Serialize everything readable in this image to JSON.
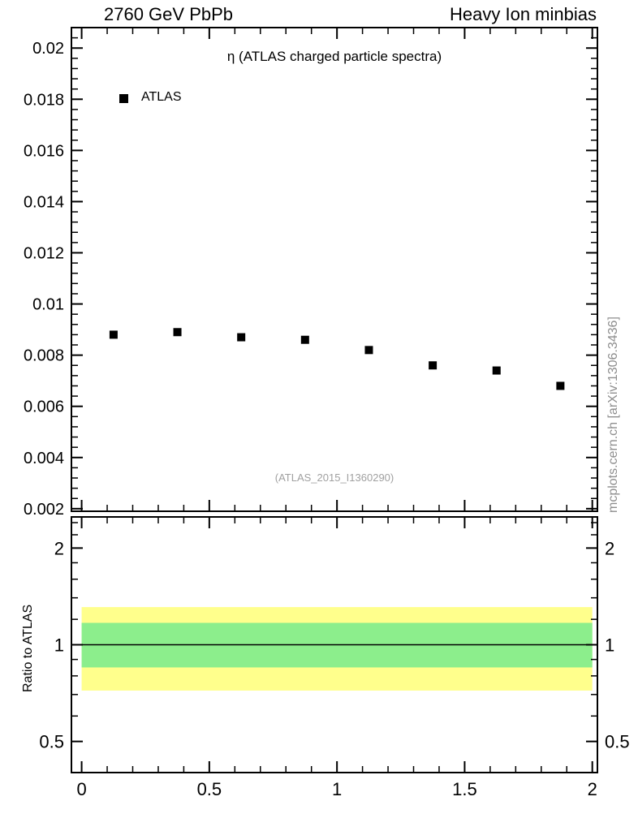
{
  "header": {
    "left": "2760 GeV PbPb",
    "right": "Heavy Ion minbias"
  },
  "side_text": "mcplots.cern.ch [arXiv:1306.3436]",
  "watermark": "(ATLAS_2015_I1360290)",
  "colors": {
    "marker": "#000000",
    "band_outer": "#ffff8c",
    "band_inner": "#8cee8c",
    "watermark": "#a0a0a0",
    "side_text": "#8e8e8e"
  },
  "chart_data": [
    {
      "type": "scatter",
      "panel": "main",
      "title": "η (ATLAS charged particle spectra)",
      "legend": [
        {
          "label": "ATLAS",
          "marker": "filled-square",
          "color": "#000000"
        }
      ],
      "x": [
        0.125,
        0.375,
        0.625,
        0.875,
        1.125,
        1.375,
        1.625,
        1.875
      ],
      "y": [
        0.0088,
        0.0089,
        0.0087,
        0.0086,
        0.0082,
        0.0076,
        0.0074,
        0.0068
      ],
      "xlim": [
        -0.04,
        2.02
      ],
      "ylim": [
        0.0019,
        0.0208
      ],
      "yticks": [
        0.002,
        0.004,
        0.006,
        0.008,
        0.01,
        0.012,
        0.014,
        0.016,
        0.018,
        0.02
      ],
      "ytick_labels": [
        "0.002",
        "0.004",
        "0.006",
        "0.008",
        "0.01",
        "0.012",
        "0.014",
        "0.016",
        "0.018",
        "0.02"
      ],
      "xticks": [
        0,
        0.5,
        1,
        1.5,
        2
      ],
      "y_minor_step": 0.0004,
      "x_minor_step": 0.1,
      "grid": false
    },
    {
      "type": "band",
      "panel": "ratio",
      "ylabel": "Ratio to ATLAS",
      "yscale": "log",
      "xlim": [
        -0.04,
        2.02
      ],
      "ylim": [
        0.4,
        2.5
      ],
      "yticks": [
        0.5,
        1,
        2
      ],
      "ytick_labels": [
        "0.5",
        "1",
        "2"
      ],
      "yticks_minor": [
        0.4,
        0.6,
        0.7,
        0.8,
        0.9,
        1.2,
        1.4,
        1.6,
        1.8,
        2.2,
        2.4
      ],
      "xticks": [
        0,
        0.5,
        1,
        1.5,
        2
      ],
      "xtick_labels": [
        "0",
        "0.5",
        "1",
        "1.5",
        "2"
      ],
      "x_minor_step": 0.1,
      "reference_line": 1,
      "bands": [
        {
          "name": "outer",
          "x": [
            0,
            2
          ],
          "lo": 0.72,
          "hi": 1.31,
          "color": "#ffff8c"
        },
        {
          "name": "inner",
          "x": [
            0,
            2
          ],
          "lo": 0.85,
          "hi": 1.17,
          "color": "#8cee8c"
        }
      ]
    }
  ]
}
